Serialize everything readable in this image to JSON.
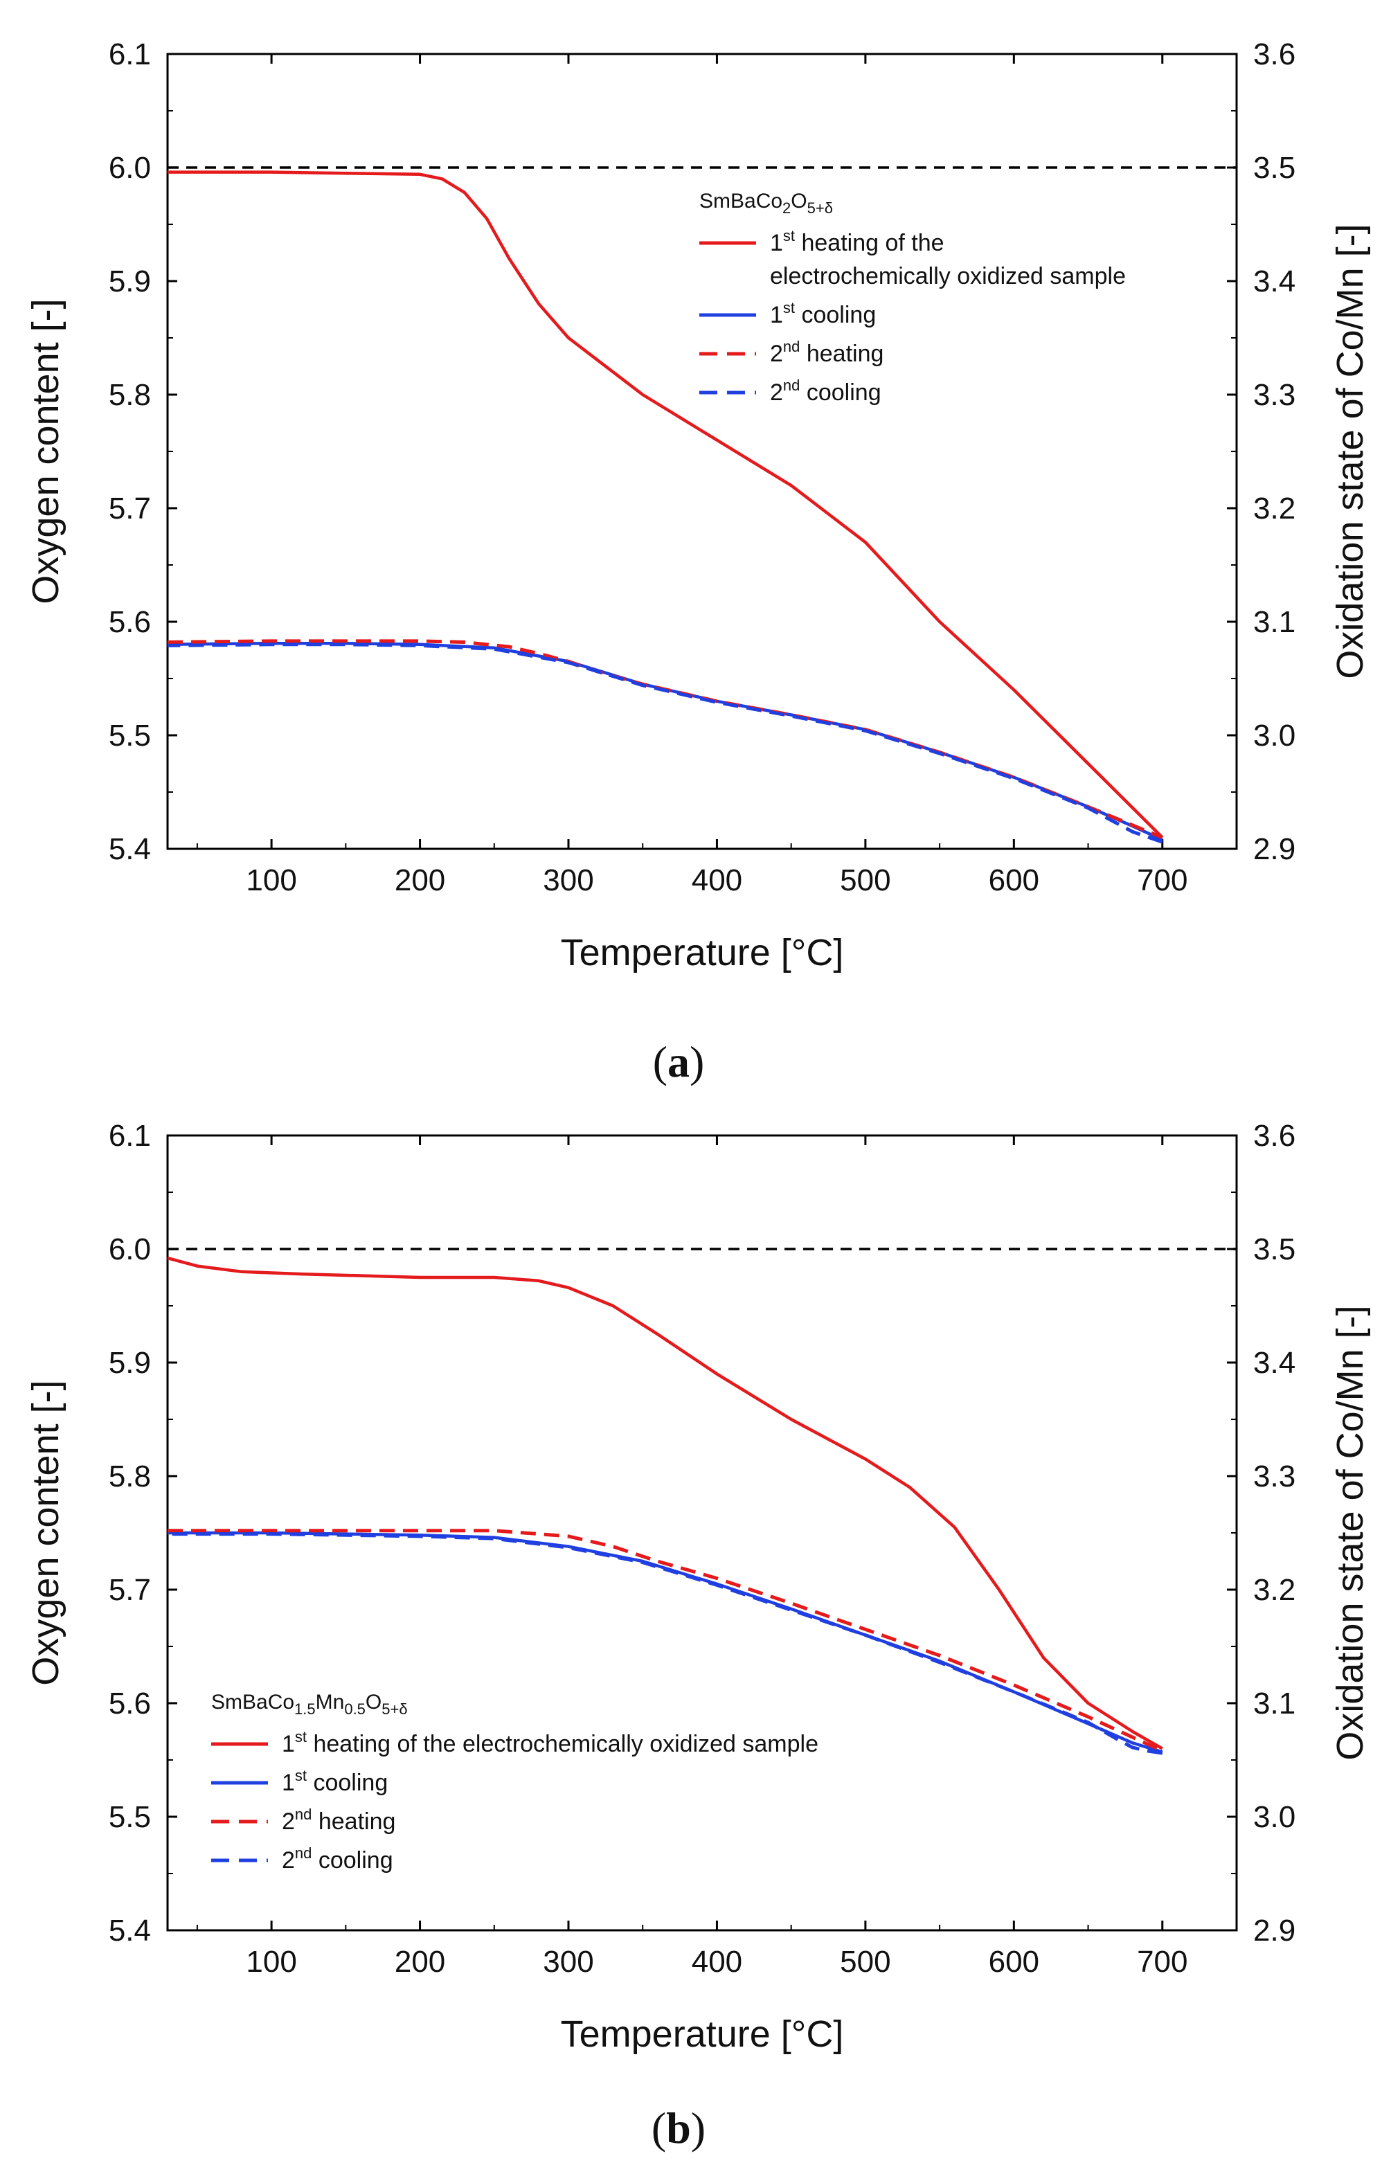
{
  "chart_data": [
    {
      "type": "line",
      "panel_label": "a",
      "caption": [
        "(",
        "a",
        ")"
      ],
      "xlabel": "Temperature [°C]",
      "ylabel": "Oxygen content [-]",
      "y2label": "Oxidation state of Co/Mn [-]",
      "xlim": [
        30,
        750
      ],
      "ylim": [
        5.4,
        6.1
      ],
      "y2lim": [
        2.9,
        3.6
      ],
      "x_ticks": [
        100,
        200,
        300,
        400,
        500,
        600,
        700
      ],
      "y_ticks": [
        5.4,
        5.5,
        5.6,
        5.7,
        5.8,
        5.9,
        6.0,
        6.1
      ],
      "y_tick_labels": [
        "5.4",
        "5.5",
        "5.6",
        "5.7",
        "5.8",
        "5.9",
        "6.0",
        "6.1"
      ],
      "y2_ticks": [
        2.9,
        3.0,
        3.1,
        3.2,
        3.3,
        3.4,
        3.5,
        3.6
      ],
      "y2_tick_labels": [
        "2.9",
        "3.0",
        "3.1",
        "3.2",
        "3.3",
        "3.4",
        "3.5",
        "3.6"
      ],
      "reference_line": {
        "y": 6.0,
        "color": "#000000",
        "style": "dashed"
      },
      "legend": {
        "placement": "top-right",
        "title": {
          "base": "SmBaCo",
          "sub1": "2",
          "mid": "O",
          "sub2": "5+δ"
        },
        "entries": [
          {
            "sup": "st",
            "pre": "1",
            "text": " heating of the",
            "text2": "electrochemically oxidized sample"
          },
          {
            "sup": "st",
            "pre": "1",
            "text": " cooling"
          },
          {
            "sup": "nd",
            "pre": "2",
            "text": " heating"
          },
          {
            "sup": "nd",
            "pre": "2",
            "text": " cooling"
          }
        ]
      },
      "series": [
        {
          "name": "1st heating of the electrochemically oxidized sample",
          "color": "#e41a1c",
          "style": "solid",
          "x": [
            30,
            100,
            150,
            200,
            215,
            230,
            245,
            260,
            280,
            300,
            320,
            350,
            400,
            450,
            480,
            500,
            550,
            600,
            650,
            700
          ],
          "y": [
            5.996,
            5.996,
            5.995,
            5.994,
            5.99,
            5.978,
            5.955,
            5.92,
            5.88,
            5.85,
            5.83,
            5.8,
            5.76,
            5.72,
            5.69,
            5.67,
            5.6,
            5.54,
            5.475,
            5.41
          ]
        },
        {
          "name": "1st cooling",
          "color": "#1f3fe0",
          "style": "solid",
          "x": [
            700,
            680,
            650,
            600,
            550,
            500,
            450,
            400,
            350,
            300,
            250,
            200,
            150,
            100,
            30
          ],
          "y": [
            5.408,
            5.42,
            5.437,
            5.463,
            5.485,
            5.505,
            5.518,
            5.53,
            5.545,
            5.565,
            5.577,
            5.58,
            5.581,
            5.581,
            5.58
          ]
        },
        {
          "name": "2nd heating",
          "color": "#e41a1c",
          "style": "dashed",
          "x": [
            30,
            100,
            150,
            200,
            230,
            260,
            280,
            300,
            320,
            350,
            400,
            450,
            500,
            550,
            600,
            650,
            700
          ],
          "y": [
            5.582,
            5.583,
            5.583,
            5.583,
            5.582,
            5.578,
            5.572,
            5.565,
            5.556,
            5.545,
            5.53,
            5.518,
            5.505,
            5.485,
            5.463,
            5.437,
            5.41
          ]
        },
        {
          "name": "2nd cooling",
          "color": "#1f3fe0",
          "style": "dashed",
          "x": [
            700,
            680,
            650,
            600,
            550,
            500,
            450,
            400,
            350,
            300,
            250,
            200,
            150,
            100,
            30
          ],
          "y": [
            5.406,
            5.415,
            5.436,
            5.462,
            5.484,
            5.504,
            5.517,
            5.529,
            5.544,
            5.564,
            5.576,
            5.579,
            5.58,
            5.58,
            5.579
          ]
        }
      ]
    },
    {
      "type": "line",
      "panel_label": "b",
      "caption": [
        "(",
        "b",
        ")"
      ],
      "xlabel": "Temperature [°C]",
      "ylabel": "Oxygen content [-]",
      "y2label": "Oxidation state of Co/Mn [-]",
      "xlim": [
        30,
        750
      ],
      "ylim": [
        5.4,
        6.1
      ],
      "y2lim": [
        2.9,
        3.6
      ],
      "x_ticks": [
        100,
        200,
        300,
        400,
        500,
        600,
        700
      ],
      "y_ticks": [
        5.4,
        5.5,
        5.6,
        5.7,
        5.8,
        5.9,
        6.0,
        6.1
      ],
      "y_tick_labels": [
        "5.4",
        "5.5",
        "5.6",
        "5.7",
        "5.8",
        "5.9",
        "6.0",
        "6.1"
      ],
      "y2_ticks": [
        2.9,
        3.0,
        3.1,
        3.2,
        3.3,
        3.4,
        3.5,
        3.6
      ],
      "y2_tick_labels": [
        "2.9",
        "3.0",
        "3.1",
        "3.2",
        "3.3",
        "3.4",
        "3.5",
        "3.6"
      ],
      "reference_line": {
        "y": 6.0,
        "color": "#000000",
        "style": "dashed"
      },
      "legend": {
        "placement": "bottom-left",
        "title": {
          "base": "SmBaCo",
          "sub1": "1.5",
          "mid": "Mn",
          "sub2": "0.5",
          "mid2": "O",
          "sub3": "5+δ"
        },
        "entries": [
          {
            "sup": "st",
            "pre": "1",
            "text": " heating of the electrochemically oxidized sample"
          },
          {
            "sup": "st",
            "pre": "1",
            "text": " cooling"
          },
          {
            "sup": "nd",
            "pre": "2",
            "text": " heating"
          },
          {
            "sup": "nd",
            "pre": "2",
            "text": " cooling"
          }
        ]
      },
      "series": [
        {
          "name": "1st heating of the electrochemically oxidized sample",
          "color": "#e41a1c",
          "style": "solid",
          "x": [
            30,
            50,
            80,
            120,
            200,
            250,
            280,
            300,
            330,
            360,
            400,
            450,
            500,
            530,
            560,
            590,
            620,
            650,
            680,
            700
          ],
          "y": [
            5.992,
            5.985,
            5.98,
            5.978,
            5.975,
            5.975,
            5.972,
            5.966,
            5.95,
            5.925,
            5.89,
            5.85,
            5.815,
            5.79,
            5.755,
            5.7,
            5.64,
            5.6,
            5.575,
            5.56
          ]
        },
        {
          "name": "1st cooling",
          "color": "#1f3fe0",
          "style": "solid",
          "x": [
            700,
            680,
            650,
            600,
            550,
            500,
            450,
            400,
            350,
            300,
            250,
            200,
            150,
            100,
            30
          ],
          "y": [
            5.557,
            5.565,
            5.582,
            5.61,
            5.637,
            5.66,
            5.683,
            5.705,
            5.725,
            5.738,
            5.746,
            5.748,
            5.749,
            5.75,
            5.75
          ]
        },
        {
          "name": "2nd heating",
          "color": "#e41a1c",
          "style": "dashed",
          "x": [
            30,
            100,
            200,
            250,
            300,
            330,
            360,
            400,
            450,
            500,
            550,
            600,
            650,
            700
          ],
          "y": [
            5.752,
            5.752,
            5.752,
            5.752,
            5.747,
            5.738,
            5.725,
            5.71,
            5.688,
            5.665,
            5.642,
            5.616,
            5.588,
            5.558
          ]
        },
        {
          "name": "2nd cooling",
          "color": "#1f3fe0",
          "style": "dashed",
          "x": [
            700,
            690,
            680,
            670,
            650,
            600,
            550,
            500,
            450,
            400,
            350,
            300,
            250,
            200,
            100,
            30
          ],
          "y": [
            5.556,
            5.558,
            5.561,
            5.568,
            5.583,
            5.61,
            5.636,
            5.66,
            5.682,
            5.704,
            5.724,
            5.737,
            5.745,
            5.747,
            5.749,
            5.749
          ]
        }
      ]
    }
  ]
}
